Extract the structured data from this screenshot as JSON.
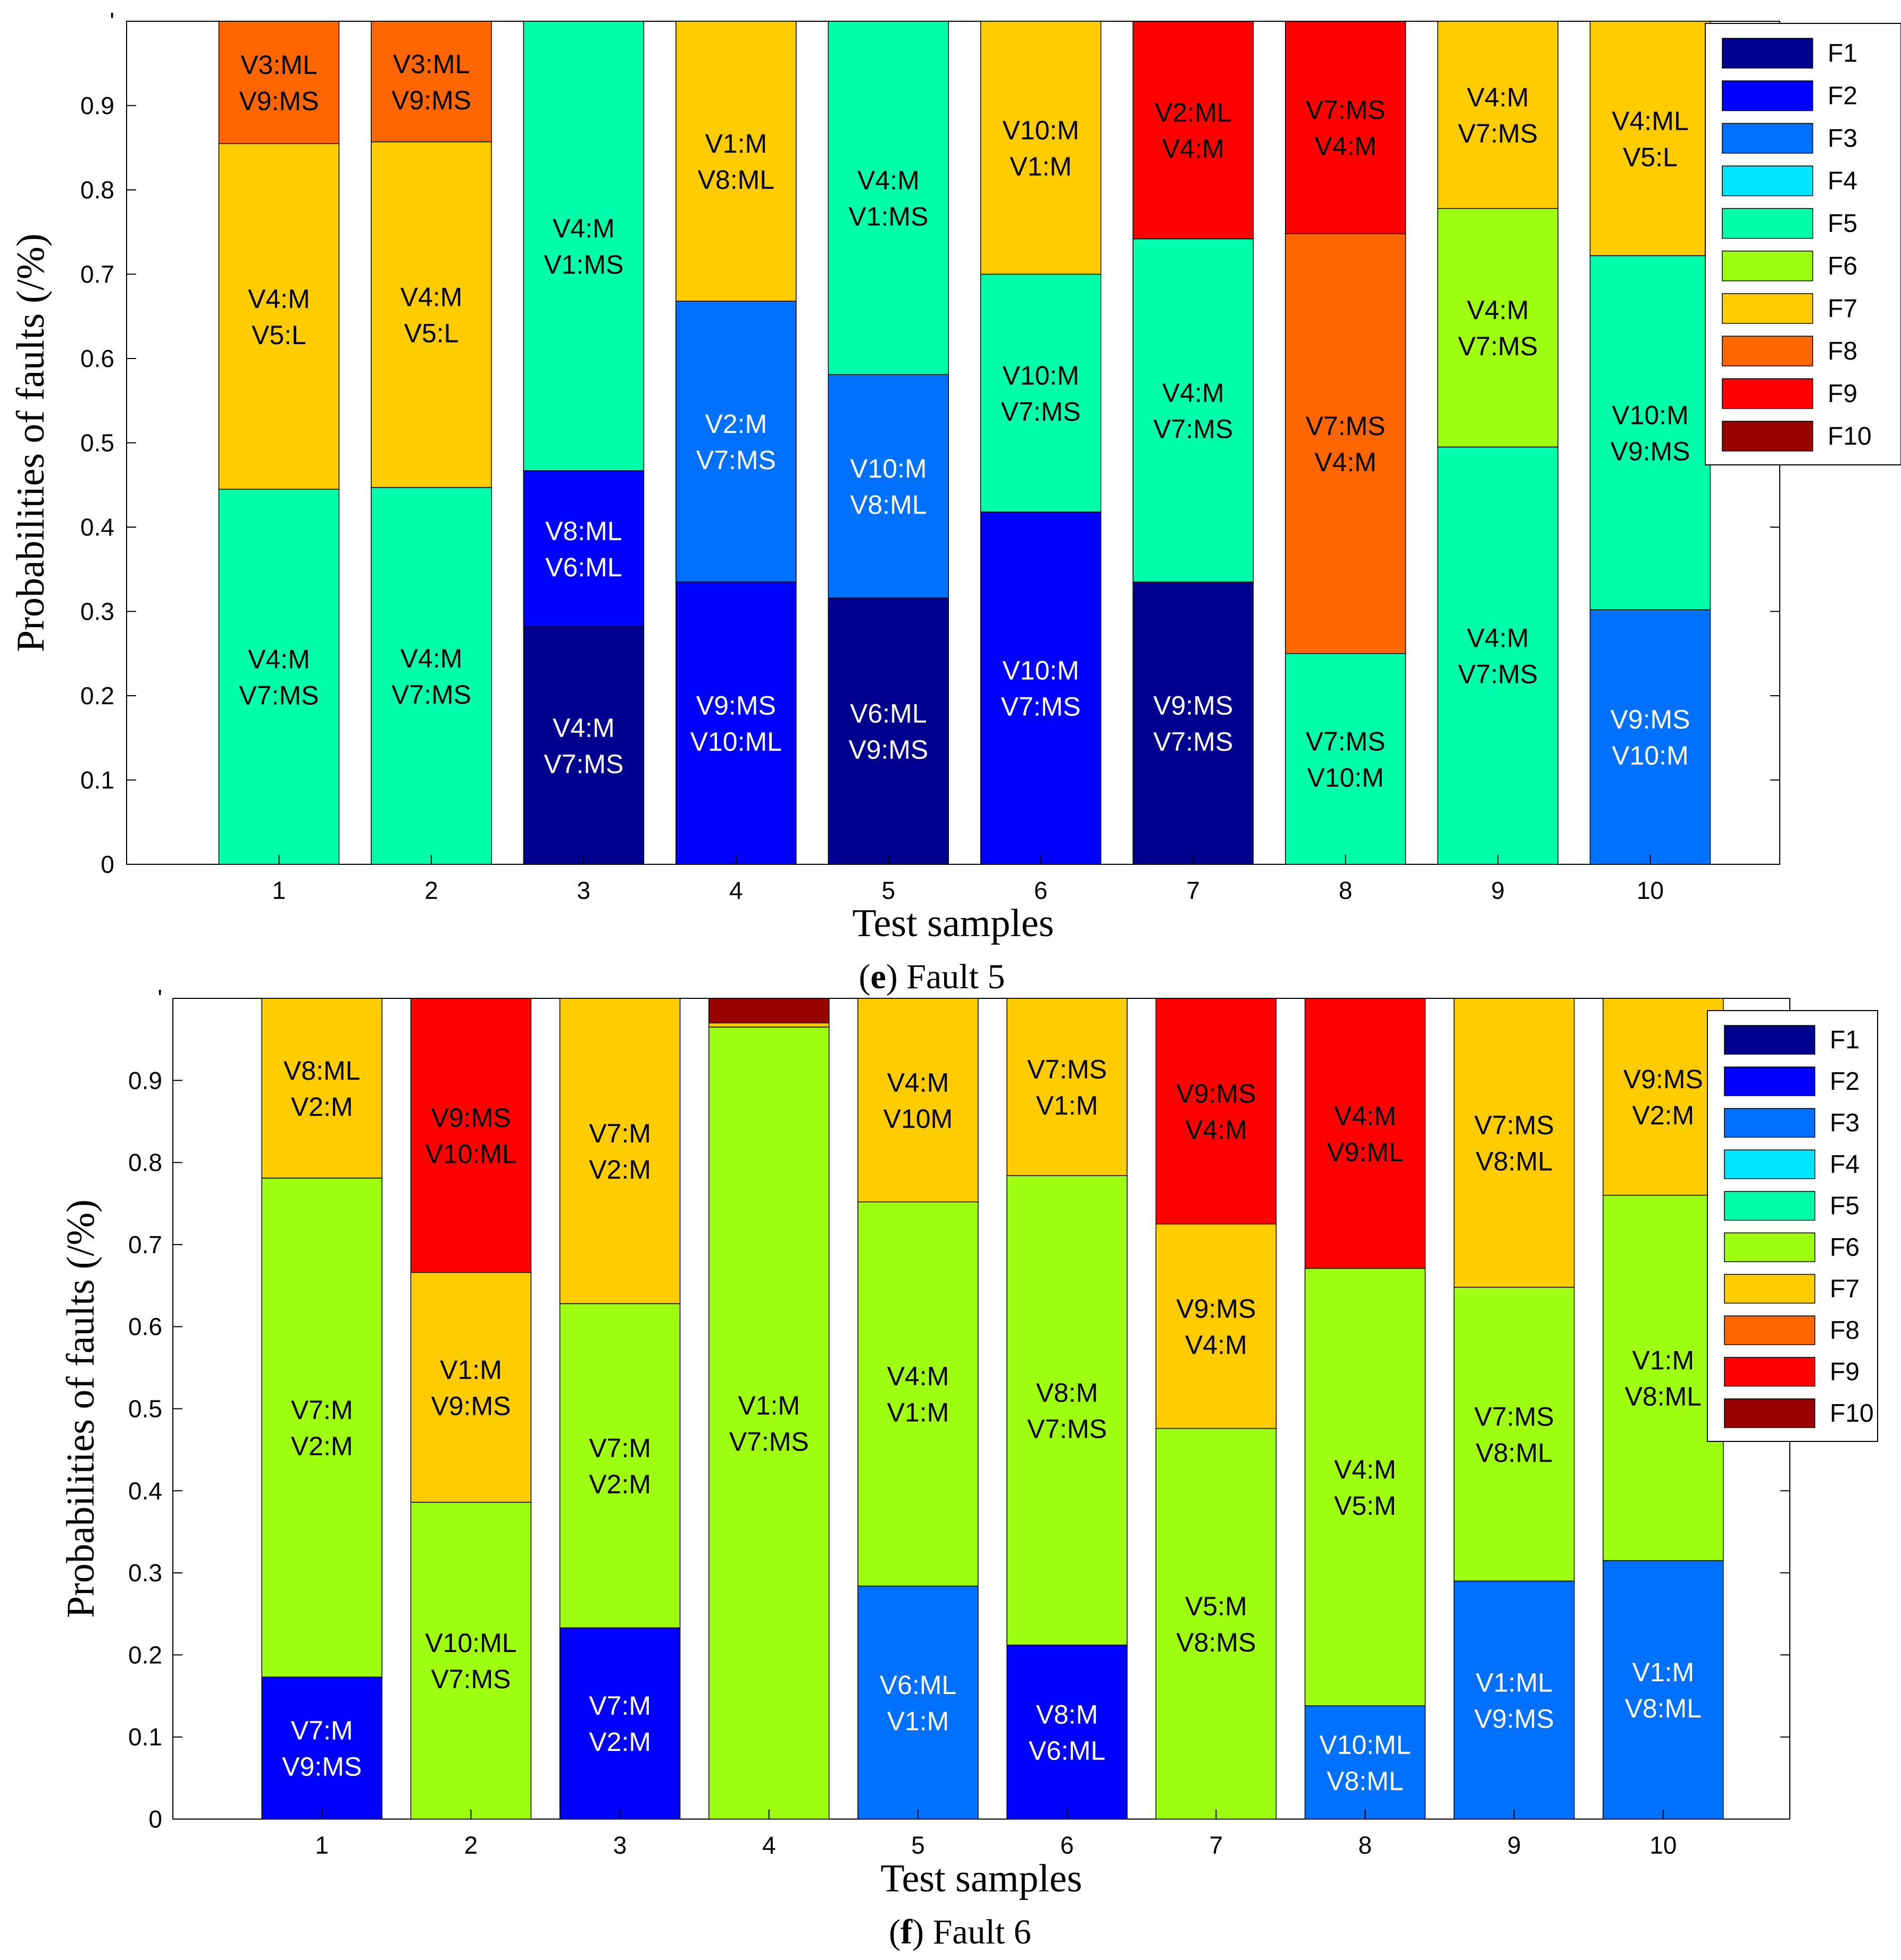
{
  "colors": {
    "F1": "#00008f",
    "F2": "#0000ff",
    "F3": "#0070ff",
    "F4": "#00e4ff",
    "F5": "#00ffaa",
    "F6": "#9eff10",
    "F7": "#ffcc00",
    "F8": "#ff6600",
    "F9": "#ff0000",
    "F10": "#990000"
  },
  "chart_data": [
    {
      "type": "bar",
      "stacked": true,
      "caption": {
        "letter": "e",
        "text": " Fault 5"
      },
      "xlabel": "Test samples",
      "ylabel": "Probabilities of faults (/%)",
      "ylim": [
        0,
        1
      ],
      "yticks": [
        "0",
        "0.1",
        "0.2",
        "0.3",
        "0.4",
        "0.5",
        "0.6",
        "0.7",
        "0.8",
        "0.9",
        "'"
      ],
      "categories": [
        "1",
        "2",
        "3",
        "4",
        "5",
        "6",
        "7",
        "8",
        "9",
        "10"
      ],
      "legend": [
        "F1",
        "F2",
        "F3",
        "F4",
        "F5",
        "F6",
        "F7",
        "F8",
        "F9",
        "F10"
      ],
      "legend_position": "top-right",
      "bars": [
        {
          "segments": [
            {
              "fault": "F5",
              "value": 0.445,
              "label": [
                "V4:M",
                "V7:MS"
              ]
            },
            {
              "fault": "F7",
              "value": 0.41,
              "label": [
                "V4:M",
                "V5:L"
              ]
            },
            {
              "fault": "F8",
              "value": 0.145,
              "label": [
                "V3:ML",
                "V9:MS"
              ]
            }
          ]
        },
        {
          "segments": [
            {
              "fault": "F5",
              "value": 0.447,
              "label": [
                "V4:M",
                "V7:MS"
              ]
            },
            {
              "fault": "F7",
              "value": 0.41,
              "label": [
                "V4:M",
                "V5:L"
              ]
            },
            {
              "fault": "F8",
              "value": 0.143,
              "label": [
                "V3:ML",
                "V9:MS"
              ]
            }
          ]
        },
        {
          "segments": [
            {
              "fault": "F1",
              "value": 0.282,
              "label": [
                "V4:M",
                "V7:MS"
              ]
            },
            {
              "fault": "F2",
              "value": 0.185,
              "label": [
                "V8:ML",
                "V6:ML"
              ]
            },
            {
              "fault": "F5",
              "value": 0.533,
              "label": [
                "V4:M",
                "V1:MS"
              ]
            }
          ]
        },
        {
          "segments": [
            {
              "fault": "F2",
              "value": 0.335,
              "label": [
                "V9:MS",
                "V10:ML"
              ]
            },
            {
              "fault": "F3",
              "value": 0.333,
              "label": [
                "V2:M",
                "V7:MS"
              ]
            },
            {
              "fault": "F7",
              "value": 0.332,
              "label": [
                "V1:M",
                "V8:ML"
              ]
            }
          ]
        },
        {
          "segments": [
            {
              "fault": "F1",
              "value": 0.316,
              "label": [
                "V6:ML",
                "V9:MS"
              ]
            },
            {
              "fault": "F3",
              "value": 0.265,
              "label": [
                "V10:M",
                "V8:ML"
              ]
            },
            {
              "fault": "F5",
              "value": 0.419,
              "label": [
                "V4:M",
                "V1:MS"
              ]
            }
          ]
        },
        {
          "segments": [
            {
              "fault": "F2",
              "value": 0.418,
              "label": [
                "V10:M",
                "V7:MS"
              ]
            },
            {
              "fault": "F5",
              "value": 0.282,
              "label": [
                "V10:M",
                "V7:MS"
              ]
            },
            {
              "fault": "F7",
              "value": 0.3,
              "label": [
                "V10:M",
                "V1:M"
              ]
            }
          ]
        },
        {
          "segments": [
            {
              "fault": "F1",
              "value": 0.335,
              "label": [
                "V9:MS",
                "V7:MS"
              ]
            },
            {
              "fault": "F5",
              "value": 0.407,
              "label": [
                "V4:M",
                "V7:MS"
              ]
            },
            {
              "fault": "F9",
              "value": 0.258,
              "label": [
                "V2:ML",
                "V4:M"
              ]
            }
          ]
        },
        {
          "segments": [
            {
              "fault": "F5",
              "value": 0.25,
              "label": [
                "V7:MS",
                "V10:M"
              ]
            },
            {
              "fault": "F8",
              "value": 0.498,
              "label": [
                "V7:MS",
                "V4:M"
              ]
            },
            {
              "fault": "F9",
              "value": 0.252,
              "label": [
                "V7:MS",
                "V4:M"
              ]
            }
          ]
        },
        {
          "segments": [
            {
              "fault": "F5",
              "value": 0.495,
              "label": [
                "V4:M",
                "V7:MS"
              ]
            },
            {
              "fault": "F6",
              "value": 0.283,
              "label": [
                "V4:M",
                "V7:MS"
              ]
            },
            {
              "fault": "F7",
              "value": 0.222,
              "label": [
                "V4:M",
                "V7:MS"
              ]
            }
          ]
        },
        {
          "segments": [
            {
              "fault": "F3",
              "value": 0.302,
              "label": [
                "V9:MS",
                "V10:M"
              ]
            },
            {
              "fault": "F5",
              "value": 0.42,
              "label": [
                "V10:M",
                "V9:MS"
              ]
            },
            {
              "fault": "F7",
              "value": 0.278,
              "label": [
                "V4:ML",
                "V5:L"
              ]
            }
          ]
        }
      ]
    },
    {
      "type": "bar",
      "stacked": true,
      "caption": {
        "letter": "f",
        "text": " Fault 6"
      },
      "xlabel": "Test samples",
      "ylabel": "Probabilities of faults (/%)",
      "ylim": [
        0,
        1
      ],
      "yticks": [
        "0",
        "0.1",
        "0.2",
        "0.3",
        "0.4",
        "0.5",
        "0.6",
        "0.7",
        "0.8",
        "0.9",
        "'"
      ],
      "categories": [
        "1",
        "2",
        "3",
        "4",
        "5",
        "6",
        "7",
        "8",
        "9",
        "10"
      ],
      "legend": [
        "F1",
        "F2",
        "F3",
        "F4",
        "F5",
        "F6",
        "F7",
        "F8",
        "F9",
        "F10"
      ],
      "legend_position": "top-right",
      "bars": [
        {
          "segments": [
            {
              "fault": "F2",
              "value": 0.173,
              "label": [
                "V7:M",
                "V9:MS"
              ]
            },
            {
              "fault": "F6",
              "value": 0.608,
              "label": [
                "V7:M",
                "V2:M"
              ]
            },
            {
              "fault": "F7",
              "value": 0.219,
              "label": [
                "V8:ML",
                "V2:M"
              ]
            }
          ]
        },
        {
          "segments": [
            {
              "fault": "F6",
              "value": 0.386,
              "label": [
                "V10:ML",
                "V7:MS"
              ]
            },
            {
              "fault": "F7",
              "value": 0.28,
              "label": [
                "V1:M",
                "V9:MS"
              ]
            },
            {
              "fault": "F9",
              "value": 0.334,
              "label": [
                "V9:MS",
                "V10:ML"
              ]
            }
          ]
        },
        {
          "segments": [
            {
              "fault": "F2",
              "value": 0.233,
              "label": [
                "V7:M",
                "V2:M"
              ]
            },
            {
              "fault": "F6",
              "value": 0.395,
              "label": [
                "V7:M",
                "V2:M"
              ]
            },
            {
              "fault": "F7",
              "value": 0.372,
              "label": [
                "V7:M",
                "V2:M"
              ]
            }
          ]
        },
        {
          "segments": [
            {
              "fault": "F6",
              "value": 0.965,
              "label": [
                "V1:M",
                "V7:MS"
              ]
            },
            {
              "fault": "F7",
              "value": 0.005,
              "label": []
            },
            {
              "fault": "F10",
              "value": 0.03,
              "label": []
            }
          ]
        },
        {
          "segments": [
            {
              "fault": "F3",
              "value": 0.284,
              "label": [
                "V6:ML",
                "V1:M"
              ]
            },
            {
              "fault": "F6",
              "value": 0.468,
              "label": [
                "V4:M",
                "V1:M"
              ]
            },
            {
              "fault": "F7",
              "value": 0.248,
              "label": [
                "V4:M",
                "V10M"
              ]
            }
          ]
        },
        {
          "segments": [
            {
              "fault": "F2",
              "value": 0.212,
              "label": [
                "V8:M",
                "V6:ML"
              ]
            },
            {
              "fault": "F6",
              "value": 0.572,
              "label": [
                "V8:M",
                "V7:MS"
              ]
            },
            {
              "fault": "F7",
              "value": 0.216,
              "label": [
                "V7:MS",
                "V1:M"
              ]
            }
          ]
        },
        {
          "segments": [
            {
              "fault": "F6",
              "value": 0.476,
              "label": [
                "V5:M",
                "V8:MS"
              ]
            },
            {
              "fault": "F7",
              "value": 0.249,
              "label": [
                "V9:MS",
                "V4:M"
              ]
            },
            {
              "fault": "F9",
              "value": 0.275,
              "label": [
                "V9:MS",
                "V4:M"
              ]
            }
          ]
        },
        {
          "segments": [
            {
              "fault": "F3",
              "value": 0.138,
              "label": [
                "V10:ML",
                "V8:ML"
              ]
            },
            {
              "fault": "F6",
              "value": 0.533,
              "label": [
                "V4:M",
                "V5:M"
              ]
            },
            {
              "fault": "F9",
              "value": 0.329,
              "label": [
                "V4:M",
                "V9:ML"
              ]
            }
          ]
        },
        {
          "segments": [
            {
              "fault": "F3",
              "value": 0.29,
              "label": [
                "V1:ML",
                "V9:MS"
              ]
            },
            {
              "fault": "F6",
              "value": 0.358,
              "label": [
                "V7:MS",
                "V8:ML"
              ]
            },
            {
              "fault": "F7",
              "value": 0.352,
              "label": [
                "V7:MS",
                "V8:ML"
              ]
            }
          ]
        },
        {
          "segments": [
            {
              "fault": "F3",
              "value": 0.315,
              "label": [
                "V1:M",
                "V8:ML"
              ]
            },
            {
              "fault": "F6",
              "value": 0.445,
              "label": [
                "V1:M",
                "V8:ML"
              ]
            },
            {
              "fault": "F7",
              "value": 0.24,
              "label": [
                "V9:MS",
                "V2:M"
              ]
            }
          ]
        }
      ]
    }
  ]
}
